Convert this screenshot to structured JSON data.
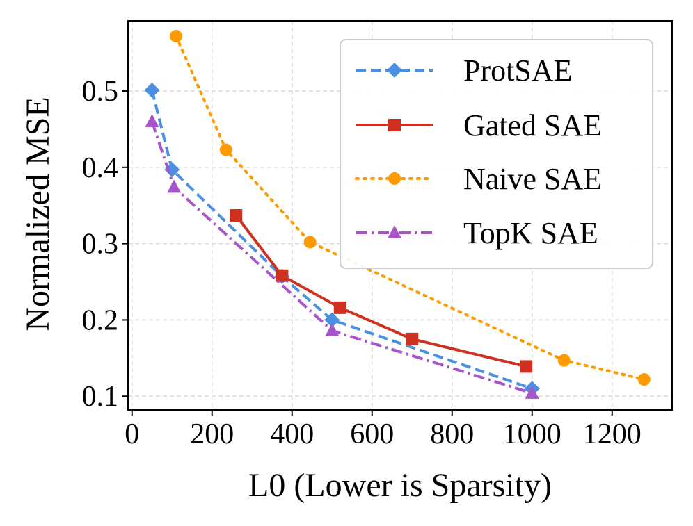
{
  "chart_data": {
    "type": "line",
    "xlabel": "L0 (Lower is Sparsity)",
    "ylabel": "Normalized MSE",
    "xlim": [
      -10,
      1350
    ],
    "ylim": [
      0.082,
      0.592
    ],
    "xticks": [
      0,
      200,
      400,
      600,
      800,
      1000,
      1200
    ],
    "yticks": [
      0.1,
      0.2,
      0.3,
      0.4,
      0.5
    ],
    "xtick_labels": [
      "0",
      "200",
      "400",
      "600",
      "800",
      "1000",
      "1200"
    ],
    "ytick_labels": [
      "0.1",
      "0.2",
      "0.3",
      "0.4",
      "0.5"
    ],
    "grid": true,
    "legend_position": "top-right",
    "series": [
      {
        "name": "ProtSAE",
        "color": "#4a90e2",
        "marker": "diamond",
        "line_style": "dashed",
        "x": [
          50,
          100,
          375,
          500,
          1000
        ],
        "y": [
          0.501,
          0.397,
          0.257,
          0.2,
          0.11
        ]
      },
      {
        "name": "Gated SAE",
        "color": "#d03020",
        "marker": "square",
        "line_style": "solid",
        "x": [
          260,
          375,
          520,
          700,
          985
        ],
        "y": [
          0.337,
          0.258,
          0.216,
          0.175,
          0.139
        ]
      },
      {
        "name": "Naive SAE",
        "color": "#ff9900",
        "marker": "circle",
        "line_style": "dotted",
        "x": [
          110,
          235,
          445,
          1080,
          1280
        ],
        "y": [
          0.572,
          0.423,
          0.302,
          0.147,
          0.122
        ]
      },
      {
        "name": "TopK SAE",
        "color": "#a855cc",
        "marker": "triangle",
        "line_style": "dashdot",
        "x": [
          50,
          105,
          500,
          1000
        ],
        "y": [
          0.46,
          0.374,
          0.186,
          0.104
        ]
      }
    ]
  }
}
